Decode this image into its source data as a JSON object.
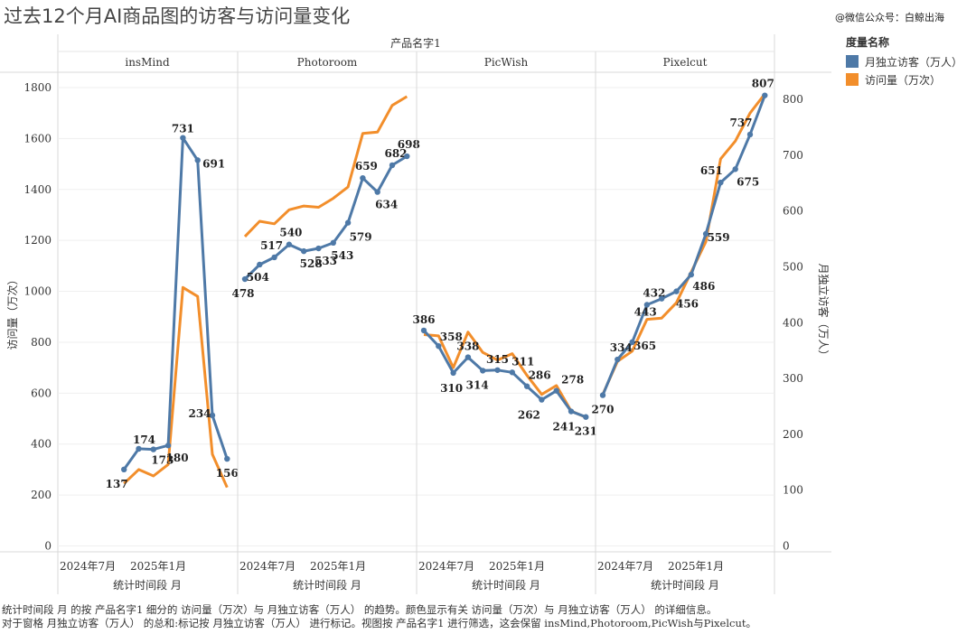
{
  "title": "过去12个月AI商品图的访客与访问量变化",
  "watermark": "@微信公众号：白鲸出海",
  "legend": {
    "title": "度量名称",
    "items": [
      {
        "label": "月独立访客（万人）",
        "color": "#4e79a7"
      },
      {
        "label": "访问量（万次）",
        "color": "#f28e2b"
      }
    ]
  },
  "footer": [
    "统计时间段 月 的按 产品名字1 细分的 访问量（万次）与 月独立访客（万人） 的趋势。颜色显示有关 访问量（万次）与 月独立访客（万人） 的详细信息。",
    "对于窗格 月独立访客（万人） 的总和:标记按 月独立访客（万人） 进行标记。视图按 产品名字1 进行筛选，这会保留 insMind,Photoroom,PicWish与Pixelcut。"
  ],
  "chart_data": {
    "type": "line",
    "facet_header": "产品名字1",
    "facets": [
      "insMind",
      "Photoroom",
      "PicWish",
      "Pixelcut"
    ],
    "x_label": "统计时间段 月",
    "x_tick_labels": [
      "2024年7月",
      "2025年1月"
    ],
    "left_axis": {
      "label": "访问量（万次）",
      "ticks": [
        0,
        200,
        400,
        600,
        800,
        1000,
        1200,
        1400,
        1600,
        1800
      ],
      "range": [
        0,
        1850
      ]
    },
    "right_axis": {
      "label": "月独立访客（万人）",
      "ticks": [
        0,
        100,
        200,
        300,
        400,
        500,
        600,
        700,
        800
      ],
      "range": [
        -19.7,
        833
      ]
    },
    "grid": true,
    "legend_position": "right",
    "series_colors": {
      "visitors": "#4e79a7",
      "visits": "#f28e2b"
    },
    "panels": [
      {
        "name": "insMind",
        "visitors": [
          137,
          174,
          173,
          180,
          731,
          691,
          234,
          156
        ],
        "visits": [
          245,
          300,
          275,
          320,
          1015,
          980,
          360,
          230
        ],
        "labels": [
          "137",
          "174",
          "173",
          "180",
          "731",
          "691",
          "234",
          "156"
        ],
        "start_slot": 5
      },
      {
        "name": "Photoroom",
        "visitors": [
          478,
          504,
          517,
          540,
          528,
          533,
          543,
          579,
          659,
          634,
          682,
          698
        ],
        "visits": [
          1215,
          1275,
          1265,
          1320,
          1335,
          1330,
          1365,
          1410,
          1620,
          1625,
          1730,
          1765
        ],
        "labels": [
          "478",
          "504",
          "517",
          "540",
          "528",
          "533",
          "543",
          "579",
          "659",
          "634",
          "682",
          "698"
        ],
        "start_slot": 1
      },
      {
        "name": "PicWish",
        "visitors": [
          386,
          358,
          310,
          338,
          314,
          315,
          311,
          286,
          262,
          278,
          241,
          231
        ],
        "visits": [
          830,
          825,
          700,
          840,
          760,
          730,
          755,
          670,
          595,
          630,
          530,
          505
        ],
        "labels": [
          "386",
          "358",
          "310",
          "338",
          "314",
          "315",
          "311",
          "286",
          "262",
          "278",
          "241",
          "231"
        ],
        "start_slot": 1
      },
      {
        "name": "Pixelcut",
        "visitors": [
          270,
          334,
          365,
          432,
          443,
          456,
          486,
          559,
          651,
          675,
          737,
          807
        ],
        "visits": [
          595,
          725,
          765,
          890,
          895,
          955,
          1075,
          1195,
          1520,
          1590,
          1700,
          1775
        ],
        "labels": [
          "270",
          "334",
          "365",
          "432",
          "443",
          "456",
          "486",
          "559",
          "651",
          "675",
          "737",
          "807"
        ],
        "start_slot": 1
      }
    ]
  }
}
